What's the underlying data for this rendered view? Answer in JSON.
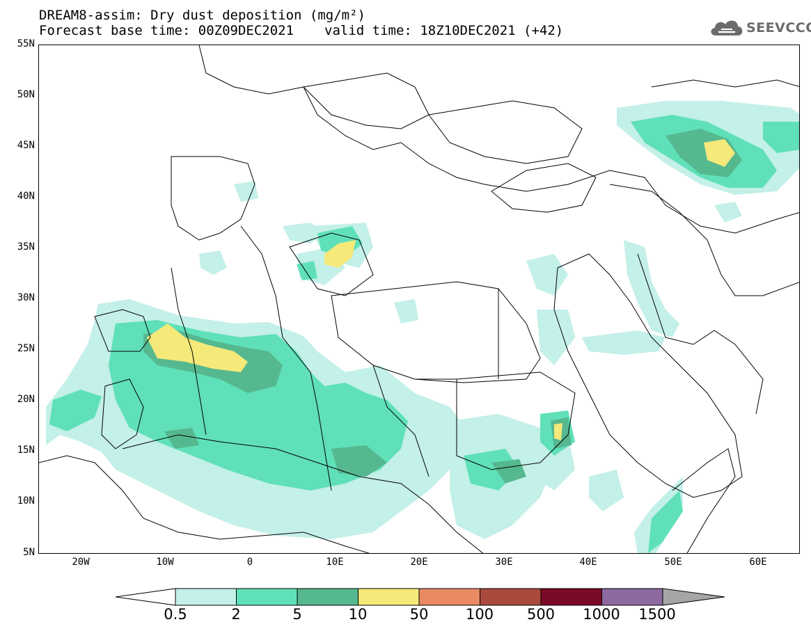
{
  "header": {
    "title_line1": "DREAM8-assim: Dry dust deposition (mg/m²)",
    "forecast_base": "Forecast base time: 00Z09DEC2021",
    "valid_time": "valid time: 18Z10DEC2021 (+42)"
  },
  "logo": {
    "text": "SEEVCCC",
    "icon": "cloud-logo-icon",
    "color": "#6b6b6b"
  },
  "map": {
    "lon_range": [
      -25,
      65
    ],
    "lat_range": [
      5,
      55
    ],
    "lat_labels": [
      "55N",
      "50N",
      "45N",
      "40N",
      "35N",
      "30N",
      "25N",
      "20N",
      "15N",
      "10N",
      "5N"
    ],
    "lon_labels": [
      "20W",
      "10W",
      "0",
      "10E",
      "20E",
      "30E",
      "40E",
      "50E",
      "60E"
    ]
  },
  "colorbar": {
    "labels": [
      "0.5",
      "2",
      "5",
      "10",
      "50",
      "100",
      "500",
      "1000",
      "1500"
    ],
    "colors": [
      "#c3f0e8",
      "#5fe0b8",
      "#56b88f",
      "#f5e97a",
      "#e98a62",
      "#a94a3c",
      "#7a0a28",
      "#8c6aa0",
      "#a6a6a6"
    ],
    "lower_arrow_color": "#ffffff",
    "upper_arrow_color": "#a6a6a6"
  }
}
